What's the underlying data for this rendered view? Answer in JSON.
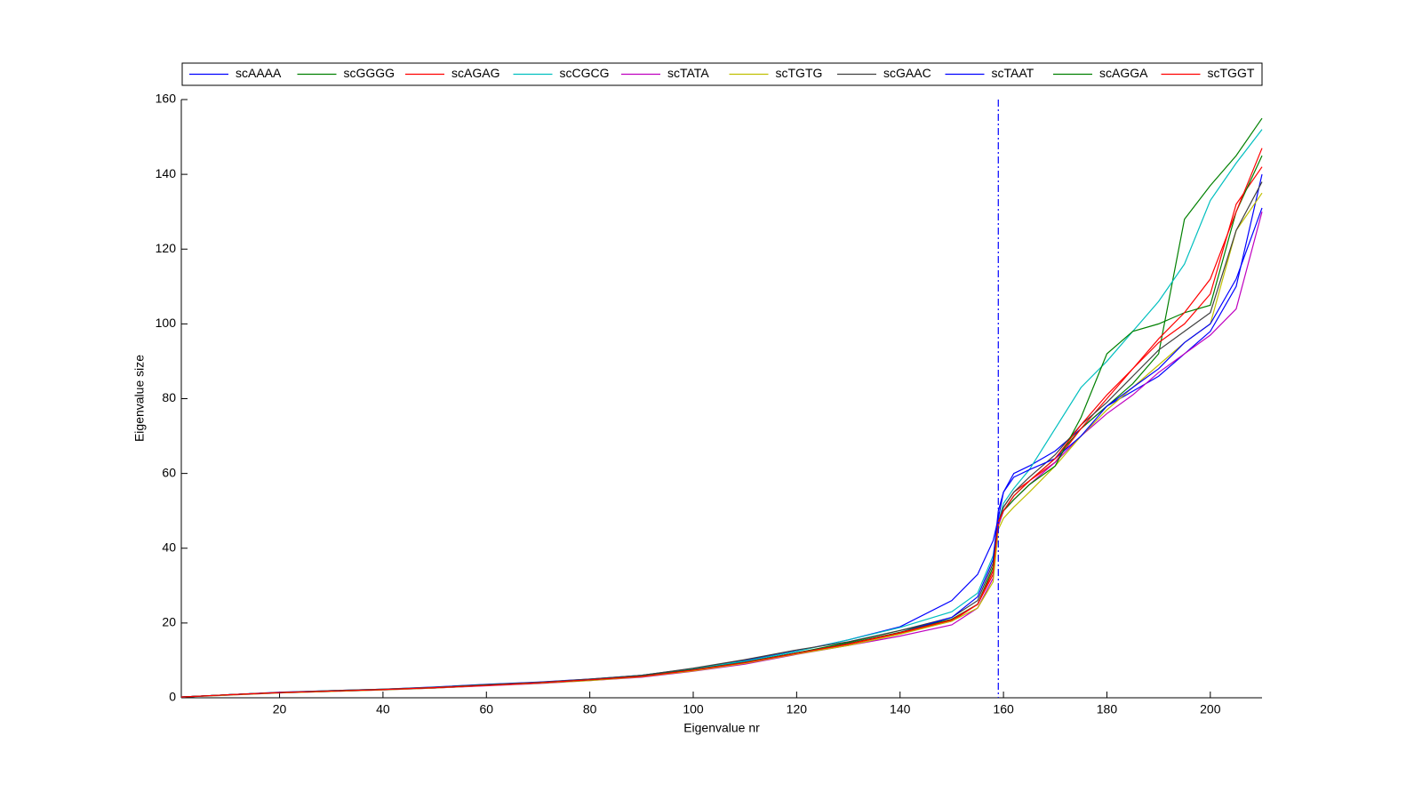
{
  "chart_data": {
    "type": "line",
    "xlabel": "Eigenvalue nr",
    "ylabel": "Eigenvalue size",
    "x": [
      1,
      10,
      20,
      30,
      40,
      50,
      60,
      70,
      80,
      90,
      100,
      110,
      120,
      130,
      140,
      150,
      155,
      158,
      159,
      160,
      162,
      165,
      170,
      175,
      180,
      185,
      190,
      195,
      200,
      205,
      210
    ],
    "series": [
      {
        "name": "scAAAA",
        "color": "#0000ff",
        "values": [
          0.2,
          0.8,
          1.5,
          1.9,
          2.3,
          2.9,
          3.6,
          4.2,
          5,
          6,
          7.8,
          10,
          12.5,
          15.5,
          19,
          26,
          33,
          42,
          48,
          55,
          60,
          62,
          66,
          72,
          78,
          82,
          86,
          92,
          98,
          110,
          140
        ]
      },
      {
        "name": "scGGGG",
        "color": "#008000",
        "values": [
          0.2,
          0.8,
          1.4,
          1.8,
          2.2,
          2.7,
          3.4,
          4,
          4.8,
          5.8,
          7.6,
          9.6,
          12,
          14.8,
          18,
          21,
          25,
          34,
          46,
          50,
          54,
          58,
          64,
          72,
          78,
          84,
          92,
          128,
          137,
          145,
          155
        ]
      },
      {
        "name": "scAGAG",
        "color": "#ff0000",
        "values": [
          0.2,
          0.8,
          1.4,
          1.8,
          2.2,
          2.6,
          3.3,
          4,
          4.7,
          5.7,
          7.4,
          9.4,
          11.8,
          14.3,
          17.3,
          20.5,
          25,
          33,
          47,
          51,
          55,
          58,
          63,
          72,
          80,
          88,
          95,
          100,
          108,
          132,
          142
        ]
      },
      {
        "name": "scCGCG",
        "color": "#00bfbf",
        "values": [
          0.2,
          0.8,
          1.4,
          1.9,
          2.3,
          2.8,
          3.5,
          4.1,
          4.9,
          6,
          7.8,
          9.8,
          12.4,
          15.5,
          18.8,
          23,
          28,
          38,
          47,
          52,
          56,
          61,
          72,
          83,
          90,
          98,
          106,
          116,
          133,
          143,
          152
        ]
      },
      {
        "name": "scTATA",
        "color": "#bf00bf",
        "values": [
          0.2,
          0.7,
          1.3,
          1.7,
          2.1,
          2.6,
          3.2,
          3.8,
          4.6,
          5.5,
          7.1,
          9,
          11.6,
          14,
          16.5,
          19.5,
          24,
          32,
          46,
          50,
          53,
          57,
          63,
          70,
          76,
          81,
          87,
          92,
          97,
          104,
          130
        ]
      },
      {
        "name": "scTGTG",
        "color": "#bfbf00",
        "values": [
          0.2,
          0.7,
          1.3,
          1.7,
          2.1,
          2.6,
          3.3,
          3.9,
          4.6,
          5.6,
          7.2,
          9.2,
          11.7,
          14,
          17,
          20.5,
          24,
          31,
          45,
          48,
          51,
          55,
          62,
          70,
          77,
          83,
          89,
          95,
          100,
          125,
          135
        ]
      },
      {
        "name": "scGAAC",
        "color": "#404040",
        "values": [
          0.2,
          0.8,
          1.4,
          1.9,
          2.3,
          2.8,
          3.5,
          4.1,
          5,
          6,
          7.9,
          10.2,
          12.8,
          15,
          18,
          21.5,
          26,
          36,
          47,
          51,
          55,
          59,
          65,
          73,
          79,
          86,
          93,
          98,
          103,
          125,
          138
        ]
      },
      {
        "name": "scTAAT",
        "color": "#0000ff",
        "values": [
          0.2,
          0.8,
          1.4,
          1.8,
          2.2,
          2.7,
          3.4,
          4,
          4.8,
          5.8,
          7.5,
          9.5,
          12,
          14.5,
          17.5,
          21.5,
          27,
          37,
          50,
          55,
          59,
          61,
          64,
          70,
          78,
          83,
          88,
          95,
          100,
          112,
          131
        ]
      },
      {
        "name": "scAGGA",
        "color": "#008000",
        "values": [
          0.2,
          0.8,
          1.4,
          1.8,
          2.2,
          2.7,
          3.4,
          4,
          4.8,
          5.8,
          7.5,
          9.5,
          12,
          14.5,
          17.5,
          21,
          25,
          35,
          47,
          50,
          53,
          57,
          62,
          75,
          92,
          98,
          100,
          103,
          105,
          130,
          145
        ]
      },
      {
        "name": "scTGGT",
        "color": "#ff0000",
        "values": [
          0.2,
          0.8,
          1.4,
          1.8,
          2.2,
          2.7,
          3.3,
          4,
          4.8,
          5.7,
          7.4,
          9.4,
          11.9,
          14.4,
          17.4,
          20.8,
          25,
          34,
          47,
          50,
          54,
          58,
          64,
          73,
          81,
          88,
          96,
          103,
          112,
          130,
          147
        ]
      }
    ],
    "xlim": [
      1,
      210
    ],
    "xticks": [
      20,
      40,
      60,
      80,
      100,
      120,
      140,
      160,
      180,
      200
    ],
    "ylim": [
      0,
      160
    ],
    "yticks": [
      0,
      20,
      40,
      60,
      80,
      100,
      120,
      140,
      160
    ],
    "vline": 159,
    "vline_color": "#0000ff",
    "legend": "top",
    "grid": false
  }
}
